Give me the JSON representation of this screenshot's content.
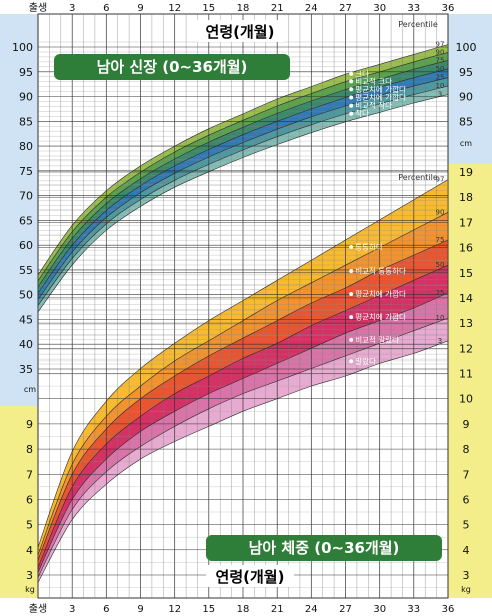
{
  "chart_data": [
    {
      "type": "area",
      "title": "남아 신장 (0~36개월)",
      "xlabel": "연령(개월)",
      "ylabel_unit": "cm",
      "percentile_title": "Percentile",
      "x_ticks": [
        "출생",
        "3",
        "6",
        "9",
        "12",
        "15",
        "18",
        "21",
        "24",
        "27",
        "30",
        "33",
        "36"
      ],
      "x": [
        0,
        3,
        6,
        9,
        12,
        15,
        18,
        21,
        24,
        27,
        30,
        33,
        36
      ],
      "xlim": [
        0,
        36
      ],
      "y_ticks_left": [
        "100",
        "95",
        "90",
        "85",
        "80",
        "75",
        "70",
        "65",
        "60",
        "55",
        "50",
        "45",
        "40",
        "35"
      ],
      "y_ticks_right": [
        "100",
        "95",
        "90",
        "85"
      ],
      "ylim": [
        33,
        102
      ],
      "percentiles": [
        "97",
        "90",
        "75",
        "50",
        "25",
        "10",
        "3"
      ],
      "series": [
        {
          "name": "97",
          "values": [
            54,
            64,
            71,
            76,
            80,
            83.5,
            86.5,
            89.5,
            92,
            94.5,
            96.5,
            98.5,
            100.5
          ]
        },
        {
          "name": "90",
          "values": [
            52.8,
            62.7,
            69.7,
            74.7,
            78.8,
            82.2,
            85.2,
            88.1,
            90.6,
            93,
            95,
            97,
            98.9
          ]
        },
        {
          "name": "75",
          "values": [
            51.6,
            61.4,
            68.4,
            73.4,
            77.4,
            80.8,
            83.8,
            86.6,
            89.1,
            91.4,
            93.5,
            95.5,
            97.3
          ]
        },
        {
          "name": "50",
          "values": [
            50.3,
            60,
            67,
            72,
            76,
            79.3,
            82.3,
            85,
            87.5,
            89.8,
            91.9,
            93.8,
            95.6
          ]
        },
        {
          "name": "25",
          "values": [
            49,
            58.6,
            65.6,
            70.6,
            74.5,
            77.8,
            80.7,
            83.4,
            85.9,
            88.1,
            90.2,
            92.1,
            93.8
          ]
        },
        {
          "name": "10",
          "values": [
            47.8,
            57.3,
            64.3,
            69.2,
            73.1,
            76.3,
            79.2,
            81.9,
            84.3,
            86.5,
            88.5,
            90.4,
            92.1
          ]
        },
        {
          "name": "3",
          "values": [
            46.5,
            56,
            63,
            67.8,
            71.7,
            74.8,
            77.7,
            80.3,
            82.7,
            84.9,
            86.8,
            88.7,
            90.4
          ]
        }
      ],
      "band_labels": [
        "크다",
        "비교적 크다",
        "평균치에 가깝다",
        "평균치에 가깝다",
        "비교적 작다",
        "작다"
      ],
      "colors": [
        "#93b83e",
        "#4c9a3d",
        "#2a7f5e",
        "#1f6fae",
        "#3f8f98",
        "#79b7b0"
      ]
    },
    {
      "type": "area",
      "title": "남아 체중 (0~36개월)",
      "xlabel": "연령(개월)",
      "ylabel_unit": "kg",
      "percentile_title": "Percentile",
      "x_ticks": [
        "출생",
        "3",
        "6",
        "9",
        "12",
        "15",
        "18",
        "21",
        "24",
        "27",
        "30",
        "33",
        "36"
      ],
      "x": [
        0,
        3,
        6,
        9,
        12,
        15,
        18,
        21,
        24,
        27,
        30,
        33,
        36
      ],
      "xlim": [
        0,
        36
      ],
      "y_ticks_left": [
        "9",
        "8",
        "7",
        "6",
        "5",
        "4",
        "3"
      ],
      "y_ticks_right": [
        "19",
        "18",
        "17",
        "16",
        "15",
        "14",
        "13",
        "12",
        "11",
        "10",
        "9",
        "8",
        "7",
        "6",
        "5",
        "4",
        "3"
      ],
      "ylim": [
        2.6,
        19.6
      ],
      "percentiles": [
        "97",
        "90",
        "75",
        "50",
        "25",
        "10",
        "3"
      ],
      "series": [
        {
          "name": "97",
          "values": [
            4.1,
            7.9,
            9.9,
            11.2,
            12.2,
            13.1,
            13.9,
            14.7,
            15.5,
            16.3,
            17.1,
            17.9,
            18.7
          ]
        },
        {
          "name": "90",
          "values": [
            3.8,
            7.4,
            9.3,
            10.5,
            11.5,
            12.3,
            13.1,
            13.9,
            14.6,
            15.3,
            16,
            16.7,
            17.4
          ]
        },
        {
          "name": "75",
          "values": [
            3.6,
            7,
            8.8,
            10,
            10.9,
            11.7,
            12.4,
            13.1,
            13.8,
            14.4,
            15.1,
            15.7,
            16.3
          ]
        },
        {
          "name": "50",
          "values": [
            3.3,
            6.5,
            8.2,
            9.3,
            10.2,
            10.9,
            11.6,
            12.2,
            12.9,
            13.5,
            14.1,
            14.7,
            15.3
          ]
        },
        {
          "name": "25",
          "values": [
            3.1,
            6,
            7.6,
            8.7,
            9.5,
            10.2,
            10.8,
            11.4,
            12,
            12.6,
            13.1,
            13.6,
            14.2
          ]
        },
        {
          "name": "10",
          "values": [
            2.9,
            5.6,
            7.1,
            8.1,
            8.9,
            9.6,
            10.2,
            10.7,
            11.2,
            11.7,
            12.2,
            12.7,
            13.2
          ]
        },
        {
          "name": "3",
          "values": [
            2.7,
            5.2,
            6.6,
            7.6,
            8.3,
            8.9,
            9.5,
            10,
            10.5,
            10.9,
            11.4,
            11.8,
            12.3
          ]
        }
      ],
      "band_labels": [
        "통통하다",
        "비교적 통통하다",
        "평균치에 가깝다",
        "평균치에 가깝다",
        "비교적 말랐다",
        "말랐다"
      ],
      "colors": [
        "#f6b41f",
        "#f08a1c",
        "#e5481f",
        "#d01f58",
        "#d568a0",
        "#e5a3cc"
      ]
    }
  ],
  "legend_colors": {
    "height_panel_bg": "#cfe3f4",
    "weight_panel_bg": "#f3ee8a",
    "grid_line": "#666666",
    "banner_fill": "#2e7d38"
  }
}
